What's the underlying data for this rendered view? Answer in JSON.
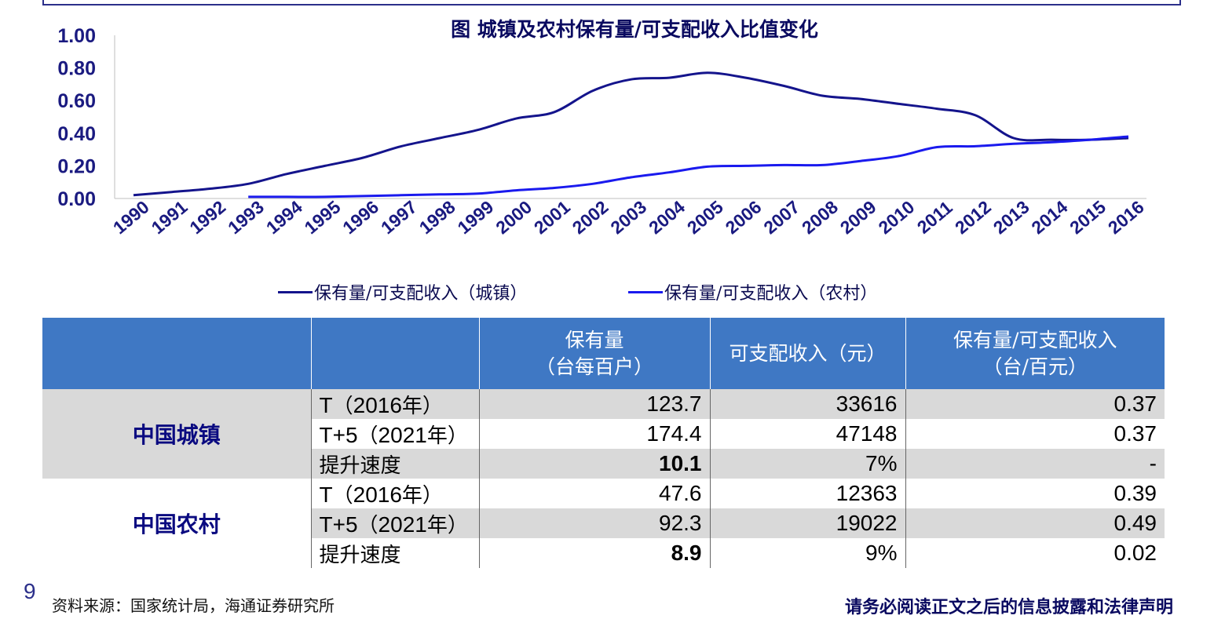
{
  "chart_data": {
    "type": "line",
    "title": "图 城镇及农村保有量/可支配收入比值变化",
    "x": [
      "1990",
      "1991",
      "1992",
      "1993",
      "1994",
      "1995",
      "1996",
      "1997",
      "1998",
      "1999",
      "2000",
      "2001",
      "2002",
      "2003",
      "2004",
      "2005",
      "2006",
      "2007",
      "2008",
      "2009",
      "2010",
      "2011",
      "2012",
      "2013",
      "2014",
      "2015",
      "2016"
    ],
    "ylim": [
      0,
      1
    ],
    "yticks": [
      "0.00",
      "0.20",
      "0.40",
      "0.60",
      "0.80",
      "1.00"
    ],
    "grid": false,
    "legend_position": "bottom",
    "series": [
      {
        "name": "保有量/可支配收入（城镇）",
        "color": "#14148c",
        "values": [
          0.02,
          0.04,
          0.06,
          0.09,
          0.15,
          0.2,
          0.25,
          0.32,
          0.37,
          0.42,
          0.49,
          0.53,
          0.66,
          0.73,
          0.74,
          0.77,
          0.74,
          0.69,
          0.63,
          0.61,
          0.58,
          0.55,
          0.51,
          0.37,
          0.36,
          0.36,
          0.37
        ]
      },
      {
        "name": "保有量/可支配收入（农村）",
        "color": "#1a1aee",
        "values": [
          null,
          null,
          null,
          0.01,
          0.01,
          0.01,
          0.015,
          0.02,
          0.025,
          0.03,
          0.05,
          0.065,
          0.09,
          0.13,
          0.16,
          0.195,
          0.2,
          0.205,
          0.205,
          0.23,
          0.26,
          0.315,
          0.32,
          0.335,
          0.345,
          0.36,
          0.38
        ]
      }
    ]
  },
  "table": {
    "headers": [
      "",
      "",
      "保有量\n（台每百户）",
      "可支配收入（元）",
      "保有量/可支配收入\n（台/百元）"
    ],
    "groups": [
      {
        "label": "中国城镇",
        "rows": [
          {
            "period_a": "T",
            "period_b": "（",
            "period_c": "2016",
            "period_d": "年）",
            "holding": "123.7",
            "income": "33616",
            "ratio": "0.37"
          },
          {
            "period_a": "T+5",
            "period_b": "（",
            "period_c": "2021",
            "period_d": "年）",
            "holding": "174.4",
            "income": "47148",
            "ratio": "0.37"
          },
          {
            "period_a": "",
            "period_b": "",
            "period_c": "",
            "period_d": "提升速度",
            "holding": "10.1",
            "income": "7%",
            "ratio": "-"
          }
        ]
      },
      {
        "label": "中国农村",
        "rows": [
          {
            "period_a": "T",
            "period_b": "（",
            "period_c": "2016",
            "period_d": "年）",
            "holding": "47.6",
            "income": "12363",
            "ratio": "0.39"
          },
          {
            "period_a": "T+5",
            "period_b": "（",
            "period_c": "2021",
            "period_d": "年）",
            "holding": "92.3",
            "income": "19022",
            "ratio": "0.49"
          },
          {
            "period_a": "",
            "period_b": "",
            "period_c": "",
            "period_d": "提升速度",
            "holding": "8.9",
            "income": "9%",
            "ratio": "0.02"
          }
        ]
      }
    ]
  },
  "footer": {
    "page_number": "9",
    "source": "资料来源：国家统计局，海通证券研究所",
    "disclaimer": "请务必阅读正文之后的信息披露和法律声明"
  }
}
